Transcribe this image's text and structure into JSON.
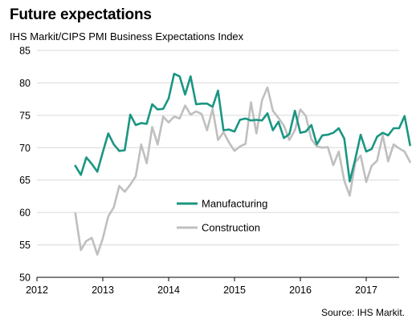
{
  "title": "Future expectations",
  "subtitle": "IHS Markit/CIPS PMI Business Expectations Index",
  "source": "Source: IHS Markit.",
  "chart_data": {
    "type": "line",
    "xlim": [
      2012.0,
      2017.5
    ],
    "ylim": [
      50,
      85
    ],
    "x_ticks": [
      2012,
      2013,
      2014,
      2015,
      2016,
      2017
    ],
    "x_tick_labels": [
      "2012",
      "2013",
      "2014",
      "2015",
      "2016",
      "2017"
    ],
    "y_ticks": [
      50,
      55,
      60,
      65,
      70,
      75,
      80,
      85
    ],
    "y_tick_labels": [
      "50",
      "55",
      "60",
      "65",
      "70",
      "75",
      "80",
      "85"
    ],
    "grid": "horizontal",
    "legend": "center",
    "series": [
      {
        "name": "Manufacturing",
        "color": "#1a9682",
        "x_start": 2012.5833,
        "x_step": 0.08333,
        "values": [
          67.2,
          65.8,
          68.5,
          67.5,
          66.3,
          69.3,
          72.2,
          70.5,
          69.5,
          69.6,
          75.1,
          73.5,
          73.8,
          73.7,
          76.7,
          75.9,
          76.0,
          77.6,
          81.4,
          81.0,
          78.2,
          81.0,
          76.7,
          76.8,
          76.8,
          76.3,
          78.8,
          72.7,
          72.8,
          72.5,
          74.3,
          74.5,
          74.2,
          74.3,
          74.2,
          75.3,
          72.7,
          74.0,
          71.5,
          72.1,
          75.7,
          72.3,
          72.5,
          73.5,
          70.5,
          71.9,
          72.0,
          72.3,
          73.0,
          71.4,
          64.8,
          68.2,
          72.0,
          69.4,
          69.8,
          71.7,
          72.3,
          71.9,
          73.0,
          73.0,
          74.9,
          70.4
        ]
      },
      {
        "name": "Construction",
        "color": "#bfbfbf",
        "x_start": 2012.5833,
        "x_step": 0.08333,
        "values": [
          59.9,
          54.2,
          55.6,
          56.1,
          53.5,
          56.0,
          59.4,
          60.8,
          64.1,
          63.2,
          64.3,
          65.6,
          70.5,
          67.6,
          73.2,
          70.5,
          74.8,
          73.9,
          74.8,
          74.5,
          76.5,
          75.1,
          75.6,
          75.2,
          72.7,
          76.0,
          71.2,
          72.4,
          70.8,
          69.5,
          70.2,
          70.6,
          77.0,
          72.2,
          77.3,
          79.3,
          75.7,
          74.6,
          73.4,
          71.2,
          72.7,
          75.9,
          74.9,
          71.3,
          70.2,
          70.0,
          70.1,
          67.3,
          69.4,
          64.9,
          62.6,
          67.7,
          68.8,
          64.7,
          67.2,
          68.0,
          71.9,
          67.9,
          70.5,
          69.9,
          69.4,
          67.8
        ]
      }
    ]
  }
}
